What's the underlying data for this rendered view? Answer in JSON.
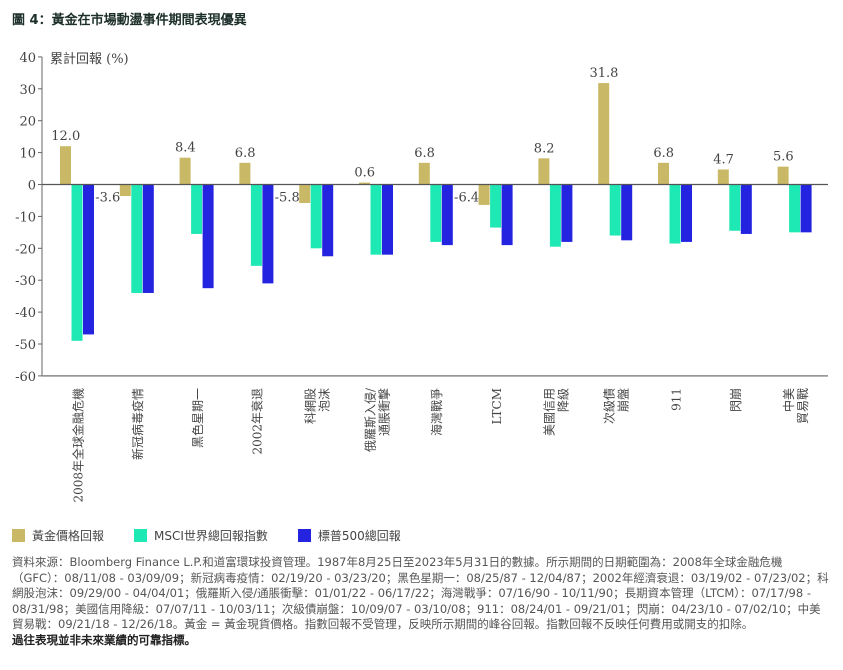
{
  "title": "圖 4：黃金在市場動盪事件期間表現優異",
  "chart_data": {
    "type": "bar",
    "title": "圖 4：黃金在市場動盪事件期間表現優異",
    "ylabel": "累計回報 (%)",
    "xlabel": "",
    "ylim": [
      -60,
      40
    ],
    "yticks": [
      40,
      30,
      20,
      10,
      0,
      -10,
      -20,
      -30,
      -40,
      -50,
      -60
    ],
    "grid": false,
    "legend": "bottom-left",
    "categories": [
      [
        "2008年全球金融危機"
      ],
      [
        "新冠病毒疫情"
      ],
      [
        "黑色星期一"
      ],
      [
        "2002年衰退"
      ],
      [
        "科網股",
        "泡沫"
      ],
      [
        "俄羅斯入侵/",
        "通脹衝擊"
      ],
      [
        "海灣戰爭"
      ],
      [
        "LTCM"
      ],
      [
        "美國信用",
        "降級"
      ],
      [
        "次級債",
        "崩盤"
      ],
      [
        "911"
      ],
      [
        "閃崩"
      ],
      [
        "中美",
        "貿易戰"
      ]
    ],
    "series": [
      {
        "name": "黃金價格回報",
        "color": "#c9b865",
        "labels_shown": true,
        "values": [
          12.0,
          -3.6,
          8.4,
          6.8,
          -5.8,
          0.6,
          6.8,
          -6.4,
          8.2,
          31.8,
          6.8,
          4.7,
          5.6
        ]
      },
      {
        "name": "MSCI世界總回報指數",
        "color": "#1ee8b4",
        "values": [
          -49,
          -34,
          -15.5,
          -25.5,
          -20,
          -22,
          -18,
          -13.5,
          -19.5,
          -16,
          -18.5,
          -14.5,
          -15
        ]
      },
      {
        "name": "標普500總回報",
        "color": "#2323e0",
        "values": [
          -47,
          -34,
          -32.5,
          -31,
          -22.5,
          -22,
          -19,
          -19,
          -18,
          -17.5,
          -18,
          -15.5,
          -15
        ]
      }
    ]
  },
  "footnote": "資料來源：Bloomberg Finance L.P.和道富環球投資管理。1987年8月25日至2023年5月31日的數據。所示期間的日期範圍為：2008年全球金融危機（GFC）：08/11/08 - 03/09/09；新冠病毒疫情：02/19/20 - 03/23/20；黑色星期一：08/25/87 - 12/04/87；2002年經濟衰退：03/19/02 - 07/23/02；科網股泡沫：09/29/00 - 04/04/01；俄羅斯入侵/通脹衝擊：01/01/22 - 06/17/22；海灣戰爭：07/16/90 - 10/11/90；長期資本管理（LTCM）：07/17/98 - 08/31/98；美國信用降級：07/07/11 - 10/03/11；次級債崩盤：10/09/07 - 03/10/08；911：08/24/01 - 09/21/01；閃崩：04/23/10 - 07/02/10；中美貿易戰：09/21/18 - 12/26/18。黃金 = 黃金現貨價格。指數回報不受管理，反映所示期間的峰谷回報。指數回報不反映任何費用或開支的扣除。",
  "disclaimer": "過往表現並非未來業績的可靠指標。"
}
